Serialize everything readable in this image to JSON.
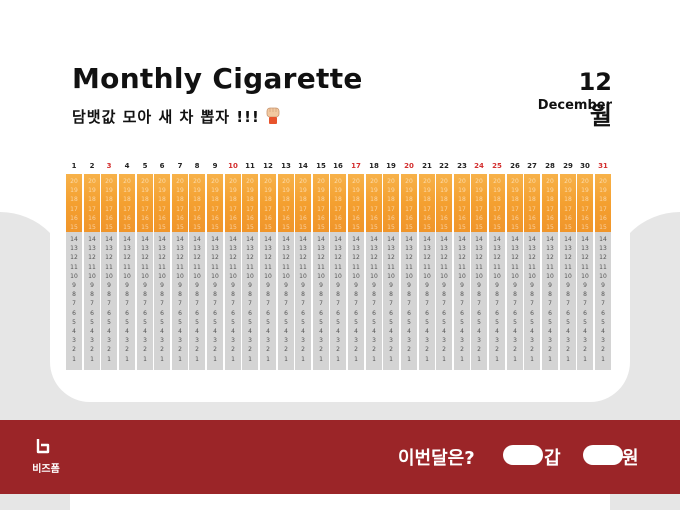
{
  "header": {
    "title": "Monthly Cigarette",
    "subtitle": "담뱃값 모아 새 차 뽑자 !!!",
    "month_number": "12월",
    "month_name": "December"
  },
  "days": [
    "1",
    "2",
    "3",
    "4",
    "5",
    "6",
    "7",
    "8",
    "9",
    "10",
    "11",
    "12",
    "13",
    "14",
    "15",
    "16",
    "17",
    "18",
    "19",
    "20",
    "21",
    "22",
    "23",
    "24",
    "25",
    "26",
    "27",
    "28",
    "29",
    "30",
    "31"
  ],
  "highlighted_days": [
    3,
    10,
    17,
    20,
    24,
    25,
    31
  ],
  "colors": {
    "highlight": "#d32f2f",
    "filter": "#f4a030",
    "paper": "#d4d4d4",
    "footer": "#9b2528"
  },
  "cigarette_numbers": [
    "20",
    "19",
    "18",
    "17",
    "16",
    "15",
    "14",
    "13",
    "12",
    "11",
    "10",
    "9",
    "8",
    "7",
    "6",
    "5",
    "4",
    "3",
    "2",
    "1"
  ],
  "footer": {
    "logo_text": "비즈폼",
    "question": "이번달은?",
    "unit_packs": "갑",
    "unit_won": "원"
  },
  "icons": {
    "fist": "fist-icon",
    "logo": "bizform-logo-icon"
  }
}
